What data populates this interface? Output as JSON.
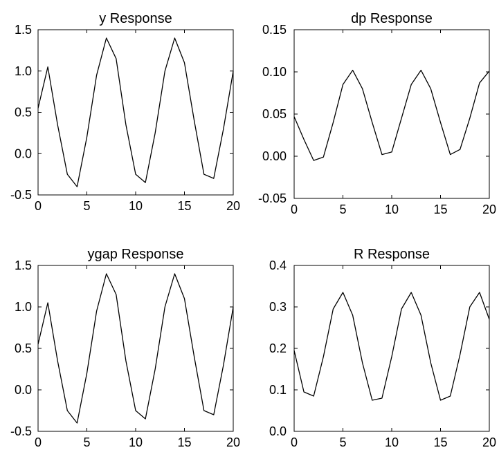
{
  "chart_data": [
    {
      "type": "line",
      "title": "y Response",
      "xlabel": "",
      "ylabel": "",
      "xlim": [
        0,
        20
      ],
      "ylim": [
        -0.5,
        1.5
      ],
      "xticks": [
        0,
        5,
        10,
        15,
        20
      ],
      "yticks": [
        -0.5,
        0.0,
        0.5,
        1.0,
        1.5
      ],
      "ytick_labels": [
        "-0.5",
        "0.0",
        "0.5",
        "1.0",
        "1.5"
      ],
      "grid": false,
      "line_color": "#000000",
      "x": [
        0,
        1,
        2,
        3,
        4,
        5,
        6,
        7,
        8,
        9,
        10,
        11,
        12,
        13,
        14,
        15,
        16,
        17,
        18,
        19,
        20
      ],
      "values": [
        0.55,
        1.05,
        0.35,
        -0.25,
        -0.4,
        0.2,
        0.95,
        1.4,
        1.15,
        0.35,
        -0.25,
        -0.35,
        0.25,
        1.0,
        1.4,
        1.1,
        0.4,
        -0.25,
        -0.3,
        0.3,
        1.0
      ]
    },
    {
      "type": "line",
      "title": "dp Response",
      "xlabel": "",
      "ylabel": "",
      "xlim": [
        0,
        20
      ],
      "ylim": [
        -0.05,
        0.15
      ],
      "xticks": [
        0,
        5,
        10,
        15,
        20
      ],
      "yticks": [
        -0.05,
        0.0,
        0.05,
        0.1,
        0.15
      ],
      "ytick_labels": [
        "-0.05",
        "0.00",
        "0.05",
        "0.10",
        "0.15"
      ],
      "grid": false,
      "line_color": "#000000",
      "x": [
        0,
        1,
        2,
        3,
        4,
        5,
        6,
        7,
        8,
        9,
        10,
        11,
        12,
        13,
        14,
        15,
        16,
        17,
        18,
        19,
        20
      ],
      "values": [
        0.047,
        0.02,
        -0.005,
        -0.001,
        0.04,
        0.085,
        0.102,
        0.08,
        0.04,
        0.002,
        0.005,
        0.045,
        0.085,
        0.102,
        0.08,
        0.04,
        0.002,
        0.008,
        0.045,
        0.087,
        0.101
      ]
    },
    {
      "type": "line",
      "title": "ygap Response",
      "xlabel": "",
      "ylabel": "",
      "xlim": [
        0,
        20
      ],
      "ylim": [
        -0.5,
        1.5
      ],
      "xticks": [
        0,
        5,
        10,
        15,
        20
      ],
      "yticks": [
        -0.5,
        0.0,
        0.5,
        1.0,
        1.5
      ],
      "ytick_labels": [
        "-0.5",
        "0.0",
        "0.5",
        "1.0",
        "1.5"
      ],
      "grid": false,
      "line_color": "#000000",
      "x": [
        0,
        1,
        2,
        3,
        4,
        5,
        6,
        7,
        8,
        9,
        10,
        11,
        12,
        13,
        14,
        15,
        16,
        17,
        18,
        19,
        20
      ],
      "values": [
        0.55,
        1.05,
        0.35,
        -0.25,
        -0.4,
        0.2,
        0.95,
        1.4,
        1.15,
        0.35,
        -0.25,
        -0.35,
        0.25,
        1.0,
        1.4,
        1.1,
        0.4,
        -0.25,
        -0.3,
        0.3,
        1.0
      ]
    },
    {
      "type": "line",
      "title": "R Response",
      "xlabel": "",
      "ylabel": "",
      "xlim": [
        0,
        20
      ],
      "ylim": [
        0.0,
        0.4
      ],
      "xticks": [
        0,
        5,
        10,
        15,
        20
      ],
      "yticks": [
        0.0,
        0.1,
        0.2,
        0.3,
        0.4
      ],
      "ytick_labels": [
        "0.0",
        "0.1",
        "0.2",
        "0.3",
        "0.4"
      ],
      "grid": false,
      "line_color": "#000000",
      "x": [
        0,
        1,
        2,
        3,
        4,
        5,
        6,
        7,
        8,
        9,
        10,
        11,
        12,
        13,
        14,
        15,
        16,
        17,
        18,
        19,
        20
      ],
      "values": [
        0.195,
        0.095,
        0.085,
        0.18,
        0.295,
        0.335,
        0.28,
        0.165,
        0.075,
        0.08,
        0.18,
        0.295,
        0.335,
        0.28,
        0.165,
        0.075,
        0.085,
        0.185,
        0.3,
        0.335,
        0.27
      ]
    }
  ]
}
